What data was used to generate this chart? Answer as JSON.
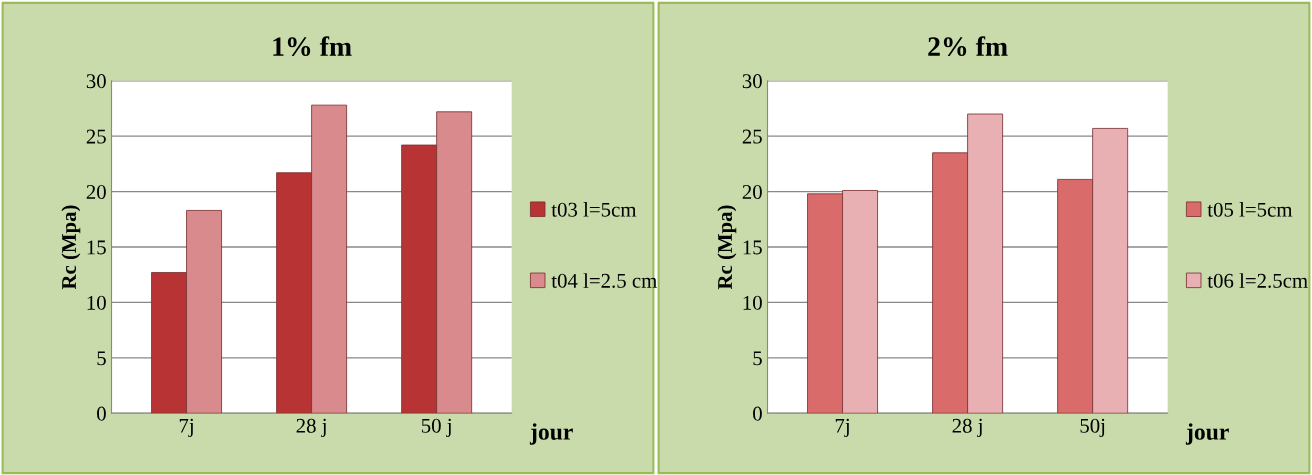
{
  "chart_data": [
    {
      "type": "bar",
      "title": "1% fm",
      "xlabel": "jour",
      "ylabel": "Rc (Mpa)",
      "categories": [
        "7j",
        "28 j",
        "50 j"
      ],
      "series": [
        {
          "name": "t03 l=5cm",
          "color": "#b83434",
          "values": [
            12.7,
            21.7,
            24.2
          ]
        },
        {
          "name": "t04 l=2.5 cm",
          "color": "#d88a8c",
          "values": [
            18.3,
            27.8,
            27.2
          ]
        }
      ],
      "ylim": [
        0,
        30
      ],
      "yticks": [
        0,
        5,
        10,
        15,
        20,
        25,
        30
      ],
      "grid": "y",
      "legend": "right"
    },
    {
      "type": "bar",
      "title": "2% fm",
      "xlabel": "jour",
      "ylabel": "Rc (Mpa)",
      "categories": [
        "7j",
        "28 j",
        "50j"
      ],
      "series": [
        {
          "name": "t05 l=5cm",
          "color": "#d96b6b",
          "values": [
            19.8,
            23.5,
            21.1
          ]
        },
        {
          "name": "t06 l=2.5cm",
          "color": "#e8b0b2",
          "values": [
            20.1,
            27.0,
            25.7
          ]
        }
      ],
      "ylim": [
        0,
        30
      ],
      "yticks": [
        0,
        5,
        10,
        15,
        20,
        25,
        30
      ],
      "grid": "y",
      "legend": "right"
    }
  ]
}
